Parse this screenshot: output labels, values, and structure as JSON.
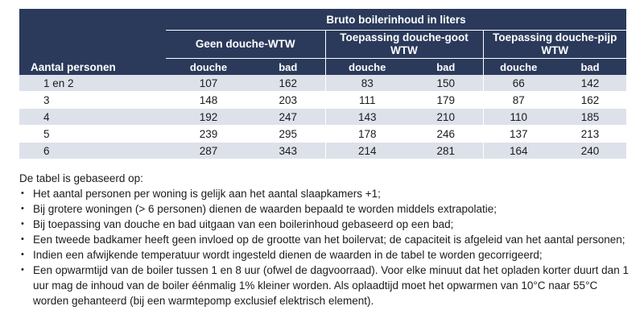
{
  "table": {
    "caption": "Bruto boilerinhoud in liters",
    "row_header": "Aantal personen",
    "groups": [
      "Geen douche-WTW",
      "Toepassing douche-goot WTW",
      "Toepassing douche-pijp WTW"
    ],
    "subcolumns": [
      "douche",
      "bad",
      "douche",
      "bad",
      "douche",
      "bad"
    ],
    "rows": [
      {
        "persons": "1 en 2",
        "values": [
          "107",
          "162",
          "83",
          "150",
          "66",
          "142"
        ]
      },
      {
        "persons": "3",
        "values": [
          "148",
          "203",
          "111",
          "179",
          "87",
          "162"
        ]
      },
      {
        "persons": "4",
        "values": [
          "192",
          "247",
          "143",
          "210",
          "110",
          "185"
        ]
      },
      {
        "persons": "5",
        "values": [
          "239",
          "295",
          "178",
          "246",
          "137",
          "213"
        ]
      },
      {
        "persons": "6",
        "values": [
          "287",
          "343",
          "214",
          "281",
          "164",
          "240"
        ]
      }
    ]
  },
  "notes": {
    "intro": "De tabel is gebaseerd op:",
    "bullets": [
      "Het aantal personen per woning is gelijk aan het aantal slaapkamers +1;",
      "Bij grotere woningen (> 6 personen) dienen de waarden bepaald te worden middels extrapolatie;",
      "Bij toepassing van douche en bad uitgaan van een boilerinhoud gebaseerd op een bad;",
      "Een tweede badkamer heeft geen invloed op de grootte van het boilervat; de capaciteit is afgeleid van het aantal personen;",
      "Indien een afwijkende temperatuur wordt ingesteld dienen de waarden in de tabel te worden gecorrigeerd;",
      "Een opwarmtijd van de boiler tussen 1 en 8 uur (ofwel de dagvoorraad). Voor elke minuut dat het opladen korter duurt dan 1 uur mag de inhoud van de boiler éénmalig 1% kleiner worden. Als oplaadtijd moet het opwarmen van 10°C naar 55°C worden gehanteerd (bij een warmtepomp exclusief elektrisch element)."
    ]
  }
}
